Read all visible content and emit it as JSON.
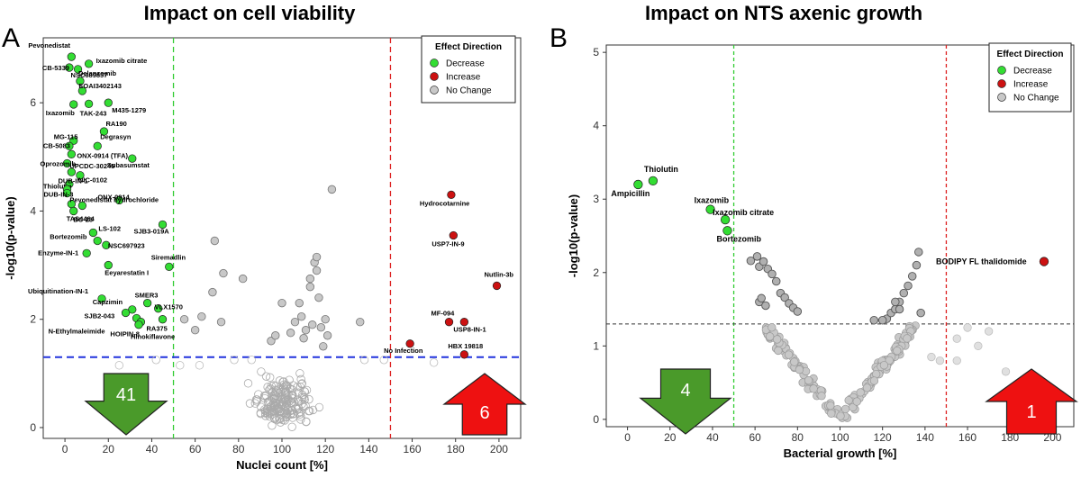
{
  "labels": {
    "panel_a": "A",
    "panel_b": "B"
  },
  "legend": {
    "title": "Effect Direction",
    "items": [
      {
        "label": "Decrease",
        "color": "#33dd33"
      },
      {
        "label": "Increase",
        "color": "#cc1111"
      },
      {
        "label": "No Change",
        "color": "#c8c8c8"
      }
    ]
  },
  "chart_data": [
    {
      "type": "scatter",
      "title": "Impact on cell viability",
      "xlabel": "Nuclei count [%]",
      "ylabel": "-log10(p-value)",
      "xlim": [
        -10,
        210
      ],
      "ylim": [
        -0.2,
        7.2
      ],
      "xticks": [
        0,
        20,
        40,
        60,
        80,
        100,
        120,
        140,
        160,
        180,
        200
      ],
      "yticks": [
        0,
        2,
        4,
        6
      ],
      "grid": false,
      "legend_position": "top-right",
      "thresholds": [
        {
          "axis": "x",
          "value": 50,
          "color": "#33cc33"
        },
        {
          "axis": "x",
          "value": 150,
          "color": "#dd2222"
        },
        {
          "axis": "y",
          "value": 1.3,
          "color": "#2233dd"
        }
      ],
      "summary_arrows": [
        {
          "label": "41",
          "direction": "down",
          "color": "#4a9a2a",
          "position": "bottom-left"
        },
        {
          "label": "6",
          "direction": "up",
          "color": "#ee1111",
          "position": "bottom-right"
        }
      ],
      "decrease": [
        {
          "label": "Pevonedistat",
          "x": 3,
          "y": 6.85
        },
        {
          "label": "Ixazomib citrate",
          "x": 11,
          "y": 6.72
        },
        {
          "label": "NSC689857",
          "x": 6,
          "y": 6.62
        },
        {
          "label": "CB-5339",
          "x": 2,
          "y": 6.65
        },
        {
          "label": "Delanzomib",
          "x": 7,
          "y": 6.4
        },
        {
          "label": "EOAI3402143",
          "x": 8,
          "y": 6.22
        },
        {
          "label": "Ixazomib",
          "x": 4,
          "y": 5.97
        },
        {
          "label": "TAK-243",
          "x": 11,
          "y": 5.98
        },
        {
          "label": "M435-1279",
          "x": 20,
          "y": 6.0
        },
        {
          "label": "RA190",
          "x": 18,
          "y": 5.47
        },
        {
          "label": "MG-115",
          "x": 4,
          "y": 5.3
        },
        {
          "label": "Degrasyn",
          "x": 15,
          "y": 5.2
        },
        {
          "label": "CB-5083",
          "x": 2,
          "y": 5.2
        },
        {
          "label": "ONX-0914 (TFA)",
          "x": 3,
          "y": 5.05
        },
        {
          "label": "Subasumstat",
          "x": 31,
          "y": 4.97
        },
        {
          "label": "Oprozomib",
          "x": 1,
          "y": 4.88
        },
        {
          "label": "UPCDC-30245",
          "x": 3,
          "y": 4.72
        },
        {
          "label": "NIC-0102",
          "x": 7,
          "y": 4.66
        },
        {
          "label": "Thiolutin",
          "x": 2,
          "y": 4.5
        },
        {
          "label": "ONX-0914",
          "x": 25,
          "y": 4.2
        },
        {
          "label": "DUB-IN-1",
          "x": 1,
          "y": 4.4
        },
        {
          "label": "Pevonedistat hydrochloride",
          "x": 3,
          "y": 4.13
        },
        {
          "label": "DUB-IN-3",
          "x": 1,
          "y": 4.33
        },
        {
          "label": "BC-23",
          "x": 8,
          "y": 4.1
        },
        {
          "label": "SJB3-019A",
          "x": 45,
          "y": 3.75
        },
        {
          "label": "TAS4464",
          "x": 4,
          "y": 4.0
        },
        {
          "label": "LS-102",
          "x": 13,
          "y": 3.6
        },
        {
          "label": "Bortezomib",
          "x": 15,
          "y": 3.45
        },
        {
          "label": "NSC697923",
          "x": 19,
          "y": 3.37
        },
        {
          "label": "Siremadlin",
          "x": 48,
          "y": 2.97
        },
        {
          "label": "Enzyme-IN-1",
          "x": 10,
          "y": 3.22
        },
        {
          "label": "Eeyarestatin I",
          "x": 20,
          "y": 3.0
        },
        {
          "label": "Ubiquitination-IN-1",
          "x": 17,
          "y": 2.38
        },
        {
          "label": "SMER3",
          "x": 38,
          "y": 2.3
        },
        {
          "label": "Capzimin",
          "x": 31,
          "y": 2.18
        },
        {
          "label": "VLX1570",
          "x": 43,
          "y": 2.2
        },
        {
          "label": "SJB2-043",
          "x": 28,
          "y": 2.12
        },
        {
          "label": "N-Ethylmaleimide",
          "x": 33,
          "y": 2.02
        },
        {
          "label": "RA375",
          "x": 45,
          "y": 2.0
        },
        {
          "label": "HOIPIN-8",
          "x": 35,
          "y": 1.95
        },
        {
          "label": "Hinokiflavone",
          "x": 34,
          "y": 1.9
        }
      ],
      "increase": [
        {
          "label": "Hydrocotarnine",
          "x": 178,
          "y": 4.3
        },
        {
          "label": "USP7-IN-9",
          "x": 179,
          "y": 3.55
        },
        {
          "label": "Nutlin-3b",
          "x": 199,
          "y": 2.62
        },
        {
          "label": "MF-094",
          "x": 177,
          "y": 1.95
        },
        {
          "label": "USP8-IN-1",
          "x": 184,
          "y": 1.95
        },
        {
          "label": "No Infection",
          "x": 159,
          "y": 1.55
        },
        {
          "label": "HBX 19818",
          "x": 184,
          "y": 1.35
        }
      ],
      "no_change_note": "unlabelled grey points clustered around x≈100"
    },
    {
      "type": "scatter",
      "title": "Impact on NTS axenic growth",
      "xlabel": "Bacterial growth [%]",
      "ylabel": "-log10(p-value)",
      "xlim": [
        -10,
        210
      ],
      "ylim": [
        -0.1,
        5.1
      ],
      "xticks": [
        0,
        20,
        40,
        60,
        80,
        100,
        120,
        140,
        160,
        180,
        200
      ],
      "yticks": [
        0,
        1,
        2,
        3,
        4,
        5
      ],
      "grid": false,
      "legend_position": "top-right",
      "thresholds": [
        {
          "axis": "x",
          "value": 50,
          "color": "#33cc33"
        },
        {
          "axis": "x",
          "value": 150,
          "color": "#dd2222"
        },
        {
          "axis": "y",
          "value": 1.3,
          "color": "#333333"
        }
      ],
      "summary_arrows": [
        {
          "label": "4",
          "direction": "down",
          "color": "#4a9a2a",
          "position": "bottom-left"
        },
        {
          "label": "1",
          "direction": "up",
          "color": "#ee1111",
          "position": "bottom-right"
        }
      ],
      "decrease": [
        {
          "label": "Thiolutin",
          "x": 12,
          "y": 3.25
        },
        {
          "label": "Ampicillin",
          "x": 5,
          "y": 3.2
        },
        {
          "label": "Ixazomib",
          "x": 39,
          "y": 2.86
        },
        {
          "label": "Ixazomib citrate",
          "x": 46,
          "y": 2.72
        },
        {
          "label": "Bortezomib",
          "x": 47,
          "y": 2.57
        }
      ],
      "increase": [
        {
          "label": "BODIPY FL thalidomide",
          "x": 196,
          "y": 2.15
        }
      ],
      "no_change_note": "unlabelled grey points forming a V centred at x≈100"
    }
  ]
}
